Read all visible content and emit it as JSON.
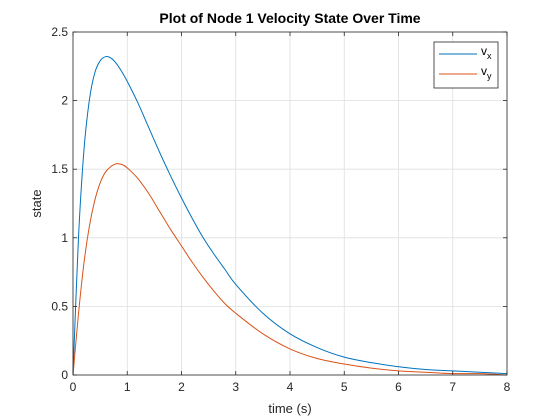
{
  "chart_data": {
    "type": "line",
    "title": "Plot of Node 1 Velocity State Over Time",
    "xlabel": "time (s)",
    "ylabel": "state",
    "xlim": [
      0,
      8
    ],
    "ylim": [
      0,
      2.5
    ],
    "xticks": [
      0,
      1,
      2,
      3,
      4,
      5,
      6,
      7,
      8
    ],
    "xtick_labels": [
      "0",
      "1",
      "2",
      "3",
      "4",
      "5",
      "6",
      "7",
      "8"
    ],
    "yticks": [
      0,
      0.5,
      1,
      1.5,
      2,
      2.5
    ],
    "ytick_labels": [
      "0",
      "0.5",
      "1",
      "1.5",
      "2",
      "2.5"
    ],
    "grid": true,
    "legend_position": "top-right",
    "x": [
      0,
      0.1,
      0.2,
      0.3,
      0.4,
      0.5,
      0.6,
      0.7,
      0.8,
      0.9,
      1.0,
      1.2,
      1.4,
      1.6,
      1.8,
      2.0,
      2.2,
      2.4,
      2.6,
      2.8,
      3.0,
      3.5,
      4.0,
      4.5,
      5.0,
      5.5,
      6.0,
      6.5,
      7.0,
      7.5,
      8.0
    ],
    "series": [
      {
        "name": "v_x",
        "legend_main": "v",
        "legend_sub": "x",
        "color": "#0072BD",
        "values": [
          0,
          0.99,
          1.63,
          2.0,
          2.2,
          2.29,
          2.32,
          2.31,
          2.27,
          2.21,
          2.14,
          1.98,
          1.8,
          1.62,
          1.45,
          1.29,
          1.14,
          1.0,
          0.88,
          0.77,
          0.66,
          0.45,
          0.3,
          0.2,
          0.13,
          0.09,
          0.06,
          0.04,
          0.03,
          0.02,
          0.01
        ]
      },
      {
        "name": "v_y",
        "legend_main": "v",
        "legend_sub": "y",
        "color": "#D95319",
        "values": [
          0,
          0.44,
          0.81,
          1.08,
          1.27,
          1.4,
          1.48,
          1.52,
          1.54,
          1.535,
          1.51,
          1.43,
          1.32,
          1.19,
          1.06,
          0.94,
          0.82,
          0.71,
          0.61,
          0.52,
          0.45,
          0.3,
          0.19,
          0.12,
          0.08,
          0.05,
          0.03,
          0.02,
          0.01,
          0.01,
          0.0
        ]
      }
    ]
  }
}
